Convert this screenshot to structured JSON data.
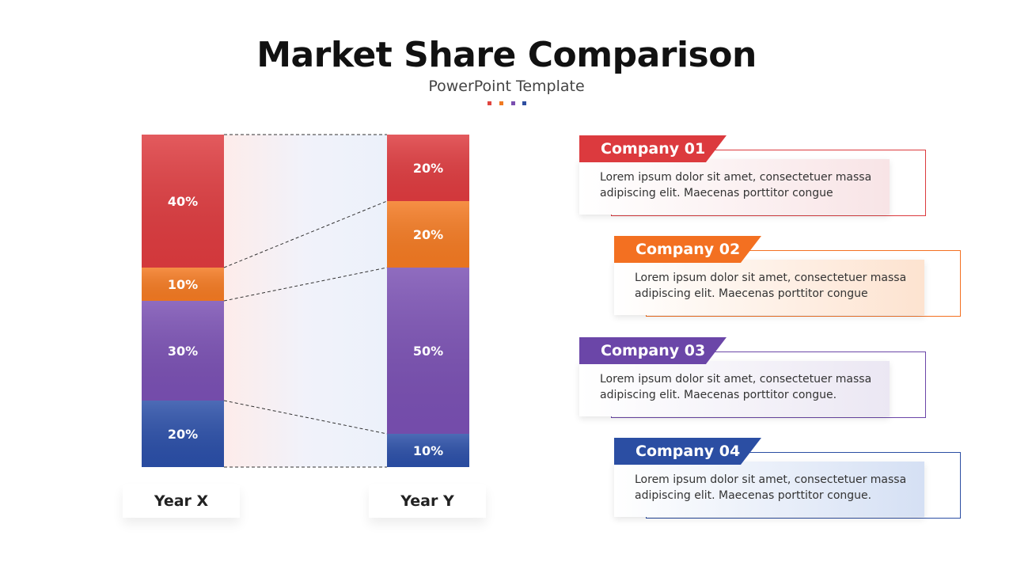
{
  "header": {
    "title": "Market Share Comparison",
    "subtitle": "PowerPoint Template",
    "dot_colors": [
      "#e0453f",
      "#f07a22",
      "#7a4fb0",
      "#2f4fa0"
    ]
  },
  "chart_data": {
    "type": "bar",
    "stacked": true,
    "categories": [
      "Year X",
      "Year Y"
    ],
    "series": [
      {
        "values": [
          20,
          10
        ],
        "color": "#2b4fa8"
      },
      {
        "values": [
          30,
          50
        ],
        "color": "#7a50b3"
      },
      {
        "values": [
          10,
          20
        ],
        "color": "#f47a22"
      },
      {
        "values": [
          40,
          20
        ],
        "color": "#de3b3f"
      }
    ],
    "ylim": [
      0,
      100
    ],
    "value_suffix": "%",
    "connectors": "dashed"
  },
  "companies": [
    {
      "title": "Company 01",
      "text": "Lorem ipsum dolor sit amet, consectetuer massa adipiscing elit. Maecenas porttitor congue",
      "color": "#dc3a3e",
      "tint": "#f8e4e6"
    },
    {
      "title": "Company 02",
      "text": "Lorem ipsum dolor sit amet, consectetuer massa adipiscing elit. Maecenas porttitor congue",
      "color": "#f37021",
      "tint": "#fde3d0"
    },
    {
      "title": "Company 03",
      "text": "Lorem ipsum dolor sit amet, consectetuer massa adipiscing elit. Maecenas porttitor congue.",
      "color": "#6b46a8",
      "tint": "#ebe7f3"
    },
    {
      "title": "Company 04",
      "text": "Lorem ipsum dolor sit amet, consectetuer massa adipiscing elit. Maecenas porttitor congue.",
      "color": "#2b4ea3",
      "tint": "#d5e0f4"
    }
  ]
}
